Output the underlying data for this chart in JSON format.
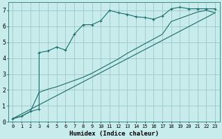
{
  "xlabel": "Humidex (Indice chaleur)",
  "bg_color": "#c8ecec",
  "grid_color": "#a0c8c8",
  "line_color": "#1a6b6b",
  "xlim": [
    -0.5,
    23.5
  ],
  "ylim": [
    0,
    7.5
  ],
  "xtick_vals": [
    0,
    1,
    2,
    3,
    4,
    5,
    6,
    7,
    8,
    9,
    10,
    11,
    12,
    13,
    14,
    15,
    16,
    17,
    18,
    19,
    20,
    21,
    22,
    23
  ],
  "ytick_vals": [
    0,
    1,
    2,
    3,
    4,
    5,
    6,
    7
  ],
  "line1_x": [
    0,
    1,
    2,
    3,
    3,
    4,
    5,
    6,
    7,
    8,
    9,
    10,
    11,
    12,
    13,
    14,
    15,
    16,
    17,
    18,
    19,
    20,
    21,
    22,
    23
  ],
  "line1_y": [
    0.2,
    0.35,
    0.65,
    0.8,
    4.35,
    4.45,
    4.7,
    4.5,
    5.5,
    6.1,
    6.1,
    6.35,
    7.0,
    6.85,
    6.75,
    6.6,
    6.55,
    6.45,
    6.65,
    7.1,
    7.2,
    7.1,
    7.1,
    7.1,
    7.1
  ],
  "line2_x": [
    0,
    1,
    2,
    3,
    4,
    5,
    6,
    7,
    8,
    9,
    10,
    11,
    12,
    13,
    14,
    15,
    16,
    17,
    18,
    19,
    20,
    21,
    22,
    23
  ],
  "line2_y": [
    0.2,
    0.35,
    0.65,
    1.85,
    2.05,
    2.2,
    2.4,
    2.6,
    2.8,
    3.05,
    3.35,
    3.65,
    3.95,
    4.3,
    4.6,
    4.9,
    5.2,
    5.5,
    6.3,
    6.5,
    6.7,
    6.9,
    7.0,
    6.85
  ],
  "line3_x": [
    0,
    23
  ],
  "line3_y": [
    0.2,
    6.85
  ]
}
